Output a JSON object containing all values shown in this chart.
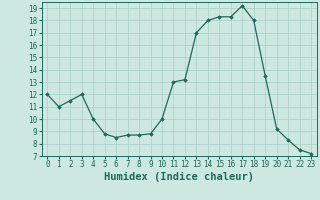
{
  "x": [
    0,
    1,
    2,
    3,
    4,
    5,
    6,
    7,
    8,
    9,
    10,
    11,
    12,
    13,
    14,
    15,
    16,
    17,
    18,
    19,
    20,
    21,
    22,
    23
  ],
  "y": [
    12.0,
    11.0,
    11.5,
    12.0,
    10.0,
    8.8,
    8.5,
    8.7,
    8.7,
    8.8,
    10.0,
    13.0,
    13.2,
    17.0,
    18.0,
    18.3,
    18.3,
    19.2,
    18.0,
    13.5,
    9.2,
    8.3,
    7.5,
    7.2
  ],
  "line_color": "#1a6b5a",
  "marker": "D",
  "marker_size": 1.8,
  "bg_color": "#cce8e0",
  "grid_color": "#aacfc7",
  "xlabel": "Humidex (Indice chaleur)",
  "xlim": [
    -0.5,
    23.5
  ],
  "ylim": [
    7,
    19.5
  ],
  "yticks": [
    7,
    8,
    9,
    10,
    11,
    12,
    13,
    14,
    15,
    16,
    17,
    18,
    19
  ],
  "xticks": [
    0,
    1,
    2,
    3,
    4,
    5,
    6,
    7,
    8,
    9,
    10,
    11,
    12,
    13,
    14,
    15,
    16,
    17,
    18,
    19,
    20,
    21,
    22,
    23
  ],
  "tick_fontsize": 5.5,
  "label_fontsize": 7.5
}
